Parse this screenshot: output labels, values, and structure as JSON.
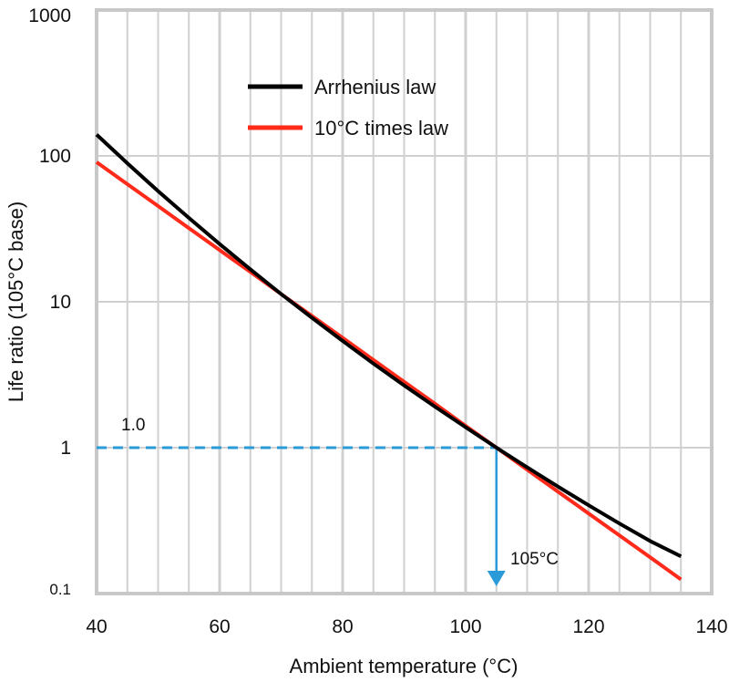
{
  "chart_data": {
    "type": "line",
    "title": "",
    "xlabel": "Ambient temperature (°C)",
    "ylabel": "Life ratio (105°C base)",
    "xlim": [
      40,
      140
    ],
    "ylim": [
      0.1,
      1000
    ],
    "yscale": "log",
    "grid": true,
    "legend_position": "top-center",
    "x_ticks": [
      "40",
      "60",
      "80",
      "100",
      "120",
      "140"
    ],
    "y_ticks": [
      "0.1",
      "1",
      "10",
      "100",
      "1000"
    ],
    "x": [
      40,
      45,
      50,
      55,
      60,
      65,
      70,
      75,
      80,
      85,
      90,
      95,
      100,
      105,
      110,
      115,
      120,
      125,
      130,
      135
    ],
    "series": [
      {
        "name": "Arrhenius law",
        "color": "#000000",
        "values": [
          140,
          89,
          57.4,
          37.6,
          24.9,
          16.7,
          11.3,
          7.77,
          5.39,
          3.77,
          2.67,
          1.91,
          1.38,
          1,
          0.733,
          0.541,
          0.403,
          0.302,
          0.229,
          0.18
        ]
      },
      {
        "name": "10°C times law",
        "color": "#ff2a1a",
        "values": [
          90.5,
          64,
          45.3,
          32,
          22.6,
          16,
          11.3,
          8,
          5.66,
          4,
          2.83,
          2,
          1.41,
          1,
          0.707,
          0.5,
          0.354,
          0.25,
          0.177,
          0.125
        ]
      }
    ],
    "annotations": [
      {
        "text": "1.0",
        "kind": "horizontal-dashed-reference",
        "y": 1,
        "color": "#2a9ad8"
      },
      {
        "text": "105°C",
        "kind": "vertical-arrow-reference",
        "x": 105,
        "color": "#2a9ad8"
      }
    ]
  }
}
